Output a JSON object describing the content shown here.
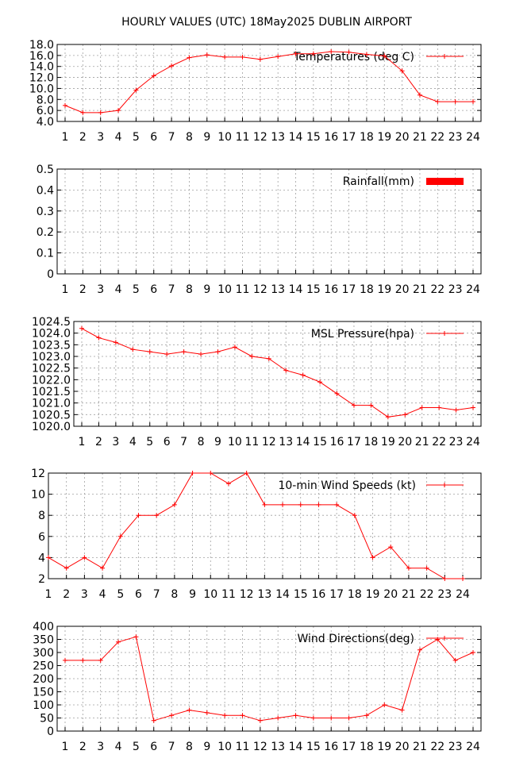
{
  "page": {
    "title": "HOURLY VALUES (UTC) 18May2025  DUBLIN AIRPORT"
  },
  "chart_data": [
    {
      "id": "temperature",
      "type": "line",
      "title": "",
      "legend": "Temperatures (deg C)",
      "legend_position": "top-right",
      "marker": "plus",
      "color": "#ff0000",
      "grid": true,
      "x": [
        1,
        2,
        3,
        4,
        5,
        6,
        7,
        8,
        9,
        10,
        11,
        12,
        13,
        14,
        15,
        16,
        17,
        18,
        19,
        20,
        21,
        22,
        23,
        24
      ],
      "values": [
        6.9,
        5.6,
        5.6,
        6.0,
        9.7,
        12.3,
        14.1,
        15.6,
        16.1,
        15.7,
        15.7,
        15.3,
        15.8,
        16.3,
        16.3,
        16.7,
        16.6,
        16.2,
        15.9,
        13.2,
        8.8,
        7.6,
        7.6,
        7.6
      ],
      "xlim": [
        1,
        24
      ],
      "ylim": [
        4,
        18
      ],
      "xticks": [
        "1",
        "2",
        "3",
        "4",
        "5",
        "6",
        "7",
        "8",
        "9",
        "10",
        "11",
        "12",
        "13",
        "14",
        "15",
        "16",
        "17",
        "18",
        "19",
        "20",
        "21",
        "22",
        "23",
        "24"
      ],
      "yticks": [
        "4.0",
        "6.0",
        "8.0",
        "10.0",
        "12.0",
        "14.0",
        "16.0",
        "18.0"
      ]
    },
    {
      "id": "rainfall",
      "type": "bar",
      "title": "",
      "legend": "Rainfall(mm)",
      "legend_position": "top-right",
      "color": "#ff0000",
      "grid": true,
      "x": [
        1,
        2,
        3,
        4,
        5,
        6,
        7,
        8,
        9,
        10,
        11,
        12,
        13,
        14,
        15,
        16,
        17,
        18,
        19,
        20,
        21,
        22,
        23,
        24
      ],
      "values": [
        0,
        0,
        0,
        0,
        0,
        0,
        0,
        0,
        0,
        0,
        0,
        0,
        0,
        0,
        0,
        0,
        0,
        0,
        0,
        0,
        0,
        0,
        0,
        0
      ],
      "xlim": [
        1,
        24
      ],
      "ylim": [
        0,
        0.5
      ],
      "xticks": [
        "1",
        "2",
        "3",
        "4",
        "5",
        "6",
        "7",
        "8",
        "9",
        "10",
        "11",
        "12",
        "13",
        "14",
        "15",
        "16",
        "17",
        "18",
        "19",
        "20",
        "21",
        "22",
        "23",
        "24"
      ],
      "yticks": [
        "0",
        "0.1",
        "0.2",
        "0.3",
        "0.4",
        "0.5"
      ]
    },
    {
      "id": "pressure",
      "type": "line",
      "title": "",
      "legend": "MSL Pressure(hpa)",
      "legend_position": "top-right",
      "marker": "plus",
      "color": "#ff0000",
      "grid": true,
      "x": [
        1,
        2,
        3,
        4,
        5,
        6,
        7,
        8,
        9,
        10,
        11,
        12,
        13,
        14,
        15,
        16,
        17,
        18,
        19,
        20,
        21,
        22,
        23,
        24
      ],
      "values": [
        1024.2,
        1023.8,
        1023.6,
        1023.3,
        1023.2,
        1023.1,
        1023.2,
        1023.1,
        1023.2,
        1023.4,
        1023.0,
        1022.9,
        1022.4,
        1022.2,
        1021.9,
        1021.4,
        1020.9,
        1020.9,
        1020.4,
        1020.5,
        1020.8,
        1020.8,
        1020.7,
        1020.8
      ],
      "xlim": [
        1,
        24
      ],
      "ylim": [
        1020.0,
        1024.5
      ],
      "xticks": [
        "1",
        "2",
        "3",
        "4",
        "5",
        "6",
        "7",
        "8",
        "9",
        "10",
        "11",
        "12",
        "13",
        "14",
        "15",
        "16",
        "17",
        "18",
        "19",
        "20",
        "21",
        "22",
        "23",
        "24"
      ],
      "yticks": [
        "1020.0",
        "1020.5",
        "1021.0",
        "1021.5",
        "1022.0",
        "1022.5",
        "1023.0",
        "1023.5",
        "1024.0",
        "1024.5"
      ]
    },
    {
      "id": "wind-speed",
      "type": "line",
      "title": "",
      "legend": "10-min Wind Speeds (kt)",
      "legend_position": "top-right",
      "marker": "plus",
      "color": "#ff0000",
      "grid": true,
      "x": [
        1,
        2,
        3,
        4,
        5,
        6,
        7,
        8,
        9,
        10,
        11,
        12,
        13,
        14,
        15,
        16,
        17,
        18,
        19,
        20,
        21,
        22,
        23,
        24
      ],
      "values": [
        4,
        3,
        4,
        3,
        6,
        8,
        8,
        9,
        12,
        12,
        11,
        12,
        9,
        9,
        9,
        9,
        9,
        8,
        4,
        5,
        3,
        3,
        2,
        2
      ],
      "xlim": [
        1,
        24
      ],
      "ylim": [
        2,
        12
      ],
      "xticks": [
        "1",
        "2",
        "3",
        "4",
        "5",
        "6",
        "7",
        "8",
        "9",
        "10",
        "11",
        "12",
        "13",
        "14",
        "15",
        "16",
        "17",
        "18",
        "19",
        "20",
        "21",
        "22",
        "23",
        "24"
      ],
      "yticks": [
        "2",
        "4",
        "6",
        "8",
        "10",
        "12"
      ]
    },
    {
      "id": "wind-direction",
      "type": "line",
      "title": "",
      "legend": "Wind Directions(deg)",
      "legend_position": "top-right",
      "marker": "plus",
      "color": "#ff0000",
      "grid": true,
      "x": [
        1,
        2,
        3,
        4,
        5,
        6,
        7,
        8,
        9,
        10,
        11,
        12,
        13,
        14,
        15,
        16,
        17,
        18,
        19,
        20,
        21,
        22,
        23,
        24
      ],
      "values": [
        270,
        270,
        270,
        340,
        360,
        40,
        60,
        80,
        70,
        60,
        60,
        40,
        50,
        60,
        50,
        50,
        50,
        60,
        100,
        80,
        310,
        350,
        270,
        300
      ],
      "xlim": [
        1,
        24
      ],
      "ylim": [
        0,
        400
      ],
      "xticks": [
        "1",
        "2",
        "3",
        "4",
        "5",
        "6",
        "7",
        "8",
        "9",
        "10",
        "11",
        "12",
        "13",
        "14",
        "15",
        "16",
        "17",
        "18",
        "19",
        "20",
        "21",
        "22",
        "23",
        "24"
      ],
      "yticks": [
        "0",
        "50",
        "100",
        "150",
        "200",
        "250",
        "300",
        "350",
        "400"
      ]
    }
  ]
}
